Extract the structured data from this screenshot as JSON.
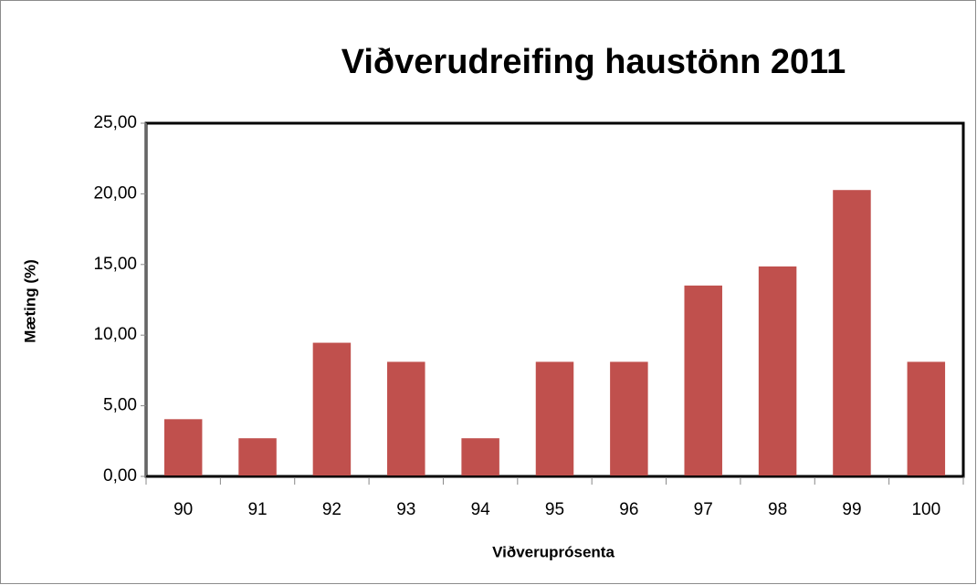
{
  "chart_data": {
    "type": "bar",
    "title": "Viðverudreifing haustönn 2011",
    "x_label": "Viðveruprósenta",
    "y_label": "Mæting (%)",
    "categories": [
      "90",
      "91",
      "92",
      "93",
      "94",
      "95",
      "96",
      "97",
      "98",
      "99",
      "100"
    ],
    "values": [
      4.05,
      2.7,
      9.46,
      8.11,
      2.7,
      8.11,
      8.11,
      13.51,
      14.86,
      20.27,
      8.11
    ],
    "color": "#c0504d",
    "ylim": [
      0,
      25
    ],
    "yticks": [
      {
        "value": 0,
        "label": "0,00"
      },
      {
        "value": 5,
        "label": "5,00"
      },
      {
        "value": 10,
        "label": "10,00"
      },
      {
        "value": 15,
        "label": "15,00"
      },
      {
        "value": 20,
        "label": "20,00"
      },
      {
        "value": 25,
        "label": "25,00"
      }
    ],
    "grid": false
  }
}
